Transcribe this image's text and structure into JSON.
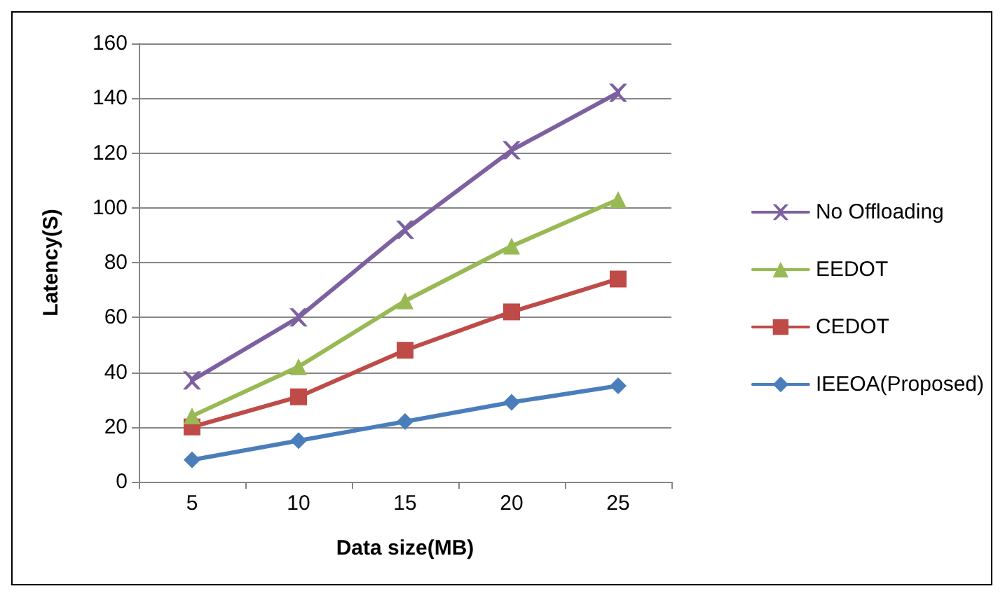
{
  "chart_data": {
    "type": "line",
    "xlabel": "Data size(MB)",
    "ylabel": "Latency(S)",
    "categories": [
      "5",
      "10",
      "15",
      "20",
      "25"
    ],
    "ylim": [
      0,
      160
    ],
    "yticks": [
      0,
      20,
      40,
      60,
      80,
      100,
      120,
      140,
      160
    ],
    "grid": "y",
    "legend": "right",
    "line_style": "solid",
    "series": [
      {
        "name": "No Offloading",
        "color": "#7d60a0",
        "marker": "cross",
        "values": [
          37,
          60,
          92,
          121,
          142
        ]
      },
      {
        "name": "EEDOT",
        "color": "#98b954",
        "marker": "triangle",
        "values": [
          24,
          42,
          66,
          86,
          103
        ]
      },
      {
        "name": "CEDOT",
        "color": "#be4b48",
        "marker": "square",
        "values": [
          20,
          31,
          48,
          62,
          74
        ]
      },
      {
        "name": "IEEOA(Proposed)",
        "color": "#4a7ebb",
        "marker": "diamond",
        "values": [
          8,
          15,
          22,
          29,
          35
        ]
      }
    ]
  }
}
